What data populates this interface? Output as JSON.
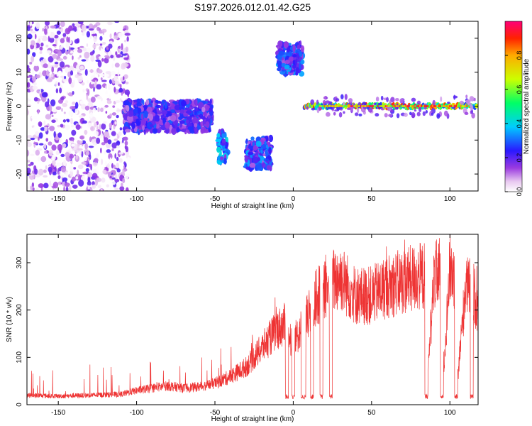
{
  "title": "S197.2026.012.01.42.G25",
  "chart_data": [
    {
      "type": "heatmap",
      "xlabel": "Height of straight line (km)",
      "ylabel": "Frequency (Hz)",
      "xlim": [
        -170,
        118
      ],
      "ylim": [
        -25,
        25
      ],
      "xticks": [
        -150,
        -100,
        -50,
        0,
        50,
        100
      ],
      "yticks": [
        -20,
        -10,
        0,
        10,
        20
      ],
      "colorbar": {
        "label": "Normalized spectral amplitude",
        "range": [
          0,
          1
        ],
        "ticks": [
          "0.0",
          "0.2",
          "0.4",
          "0.6",
          "0.8"
        ]
      },
      "features": [
        {
          "x_range": [
            -170,
            -105
          ],
          "freq": 0,
          "amplitude": 0.05,
          "description": "diffuse noise"
        },
        {
          "x_range": [
            -108,
            -52
          ],
          "freq": -3,
          "amplitude": 0.25
        },
        {
          "x_range": [
            -48,
            -42
          ],
          "freq": -12,
          "amplitude": 0.35
        },
        {
          "x_range": [
            -30,
            -14
          ],
          "freq": -14,
          "amplitude": 0.3
        },
        {
          "x_range": [
            -10,
            6
          ],
          "freq": 14,
          "amplitude": 0.3
        },
        {
          "x_range": [
            7,
            117
          ],
          "freq": 0,
          "amplitude": 0.95,
          "description": "strong carrier line"
        }
      ]
    },
    {
      "type": "line",
      "xlabel": "Height of straight line (km)",
      "ylabel": "SNR (10 * v/v)",
      "xlim": [
        -170,
        118
      ],
      "ylim": [
        0,
        360
      ],
      "xticks": [
        -150,
        -100,
        -50,
        0,
        50,
        100
      ],
      "yticks": [
        0,
        100,
        200,
        300
      ],
      "color": "#ee3333",
      "series": [
        {
          "name": "SNR",
          "x": [
            -170,
            -150,
            -130,
            -110,
            -100,
            -90,
            -80,
            -70,
            -60,
            -50,
            -40,
            -30,
            -25,
            -20,
            -15,
            -10,
            -5,
            0,
            5,
            10,
            15,
            20,
            25,
            30,
            35,
            40,
            50,
            60,
            70,
            80,
            84,
            85,
            90,
            94,
            95,
            100,
            103,
            104,
            110,
            115,
            118
          ],
          "y": [
            20,
            18,
            20,
            22,
            30,
            35,
            40,
            35,
            38,
            45,
            60,
            80,
            100,
            120,
            140,
            160,
            170,
            130,
            160,
            190,
            230,
            240,
            260,
            270,
            250,
            230,
            230,
            250,
            260,
            270,
            270,
            20,
            270,
            280,
            20,
            290,
            270,
            20,
            250,
            240,
            200
          ]
        }
      ],
      "dropouts_x": [
        [
          -5,
          -3
        ],
        [
          -1,
          1
        ],
        [
          5,
          8
        ],
        [
          11,
          13
        ],
        [
          17,
          19
        ],
        [
          23,
          25
        ],
        [
          84,
          86
        ],
        [
          94,
          96
        ],
        [
          103,
          105
        ],
        [
          113,
          115
        ]
      ]
    }
  ]
}
